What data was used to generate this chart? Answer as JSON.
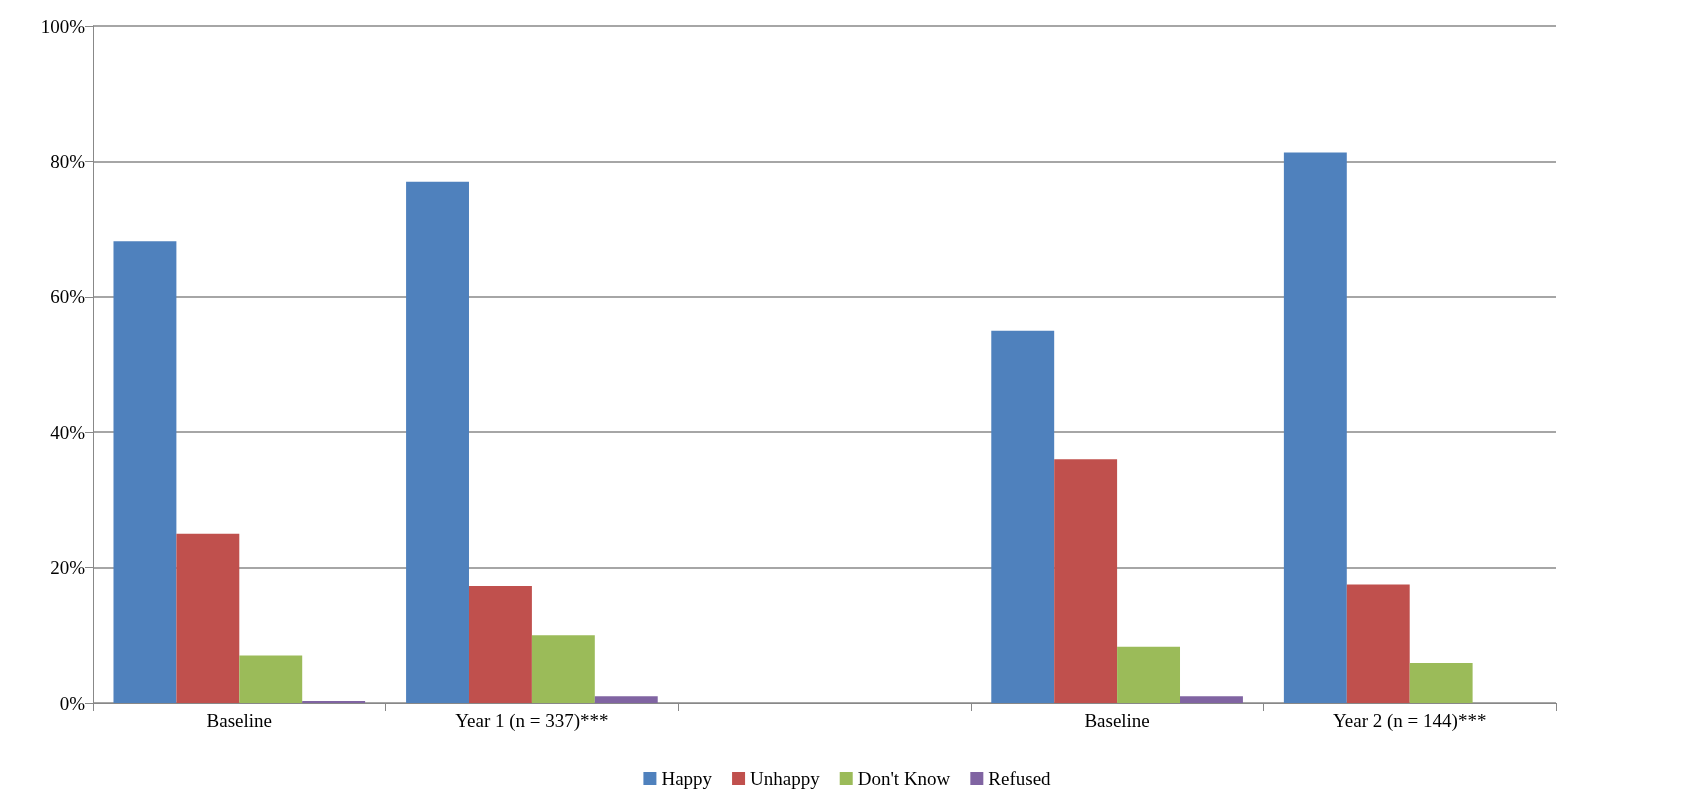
{
  "chart_data": {
    "type": "bar",
    "categories": [
      "Baseline",
      "Year 1 (n = 337)***",
      null,
      "Baseline",
      "Year 2 (n = 144)***"
    ],
    "series": [
      {
        "name": "Happy",
        "color": "#4f81bd",
        "values": [
          68.2,
          77.0,
          null,
          55.0,
          81.3
        ]
      },
      {
        "name": "Unhappy",
        "color": "#c0504d",
        "values": [
          25.0,
          17.3,
          null,
          36.0,
          17.5
        ]
      },
      {
        "name": "Don't Know",
        "color": "#9bbb59",
        "values": [
          7.0,
          10.0,
          null,
          8.3,
          5.9
        ]
      },
      {
        "name": "Refused",
        "color": "#8064a2",
        "values": [
          0.3,
          1.0,
          null,
          1.0,
          0
        ]
      }
    ],
    "ylim": [
      0,
      100
    ],
    "yticks": [
      {
        "value": 0,
        "label": "0%"
      },
      {
        "value": 20,
        "label": "20%"
      },
      {
        "value": 40,
        "label": "40%"
      },
      {
        "value": 60,
        "label": "60%"
      },
      {
        "value": 80,
        "label": "80%"
      },
      {
        "value": 100,
        "label": "100%"
      }
    ],
    "grid": "y",
    "legend": "bottom"
  }
}
